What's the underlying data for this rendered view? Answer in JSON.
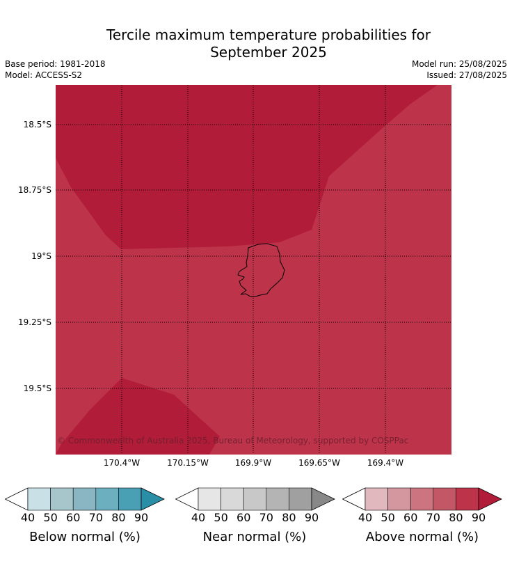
{
  "title": {
    "line1": "Tercile maximum temperature probabilities for",
    "line2": "September 2025"
  },
  "meta": {
    "base_period": "Base period: 1981-2018",
    "model": "Model: ACCESS-S2",
    "model_run": "Model run: 25/08/2025",
    "issued": "Issued: 27/08/2025"
  },
  "map": {
    "lat_labels": [
      "18.5°S",
      "18.75°S",
      "19°S",
      "19.25°S",
      "19.5°S"
    ],
    "lon_labels": [
      "170.4°W",
      "170.15°W",
      "169.9°W",
      "169.65°W",
      "169.4°W"
    ],
    "copyright": "© Commonwealth of Australia 2025, Bureau of Meteorology, supported by COSPPac",
    "colors": {
      "above_80_90": "#bd3349",
      "above_90_plus": "#b11c38",
      "coastline": "#000000",
      "gridline": "#000000"
    },
    "regions": [
      {
        "category": "Above normal",
        "probability_range": "90+",
        "color": "#b11c38"
      },
      {
        "category": "Above normal",
        "probability_range": "80-90",
        "color": "#bd3349"
      }
    ]
  },
  "legends": [
    {
      "title": "Below normal (%)",
      "ticks": [
        "40",
        "50",
        "60",
        "70",
        "80",
        "90"
      ],
      "colors": [
        "#ffffff",
        "#c8e0e6",
        "#a7c6cc",
        "#89b6c2",
        "#6cafbf",
        "#49a0b5",
        "#2a8ea6"
      ]
    },
    {
      "title": "Near normal (%)",
      "ticks": [
        "40",
        "50",
        "60",
        "70",
        "80",
        "90"
      ],
      "colors": [
        "#ffffff",
        "#e6e6e6",
        "#d9d9d9",
        "#c8c8c8",
        "#b4b4b4",
        "#a0a0a0",
        "#888888"
      ]
    },
    {
      "title": "Above normal (%)",
      "ticks": [
        "40",
        "50",
        "60",
        "70",
        "80",
        "90"
      ],
      "colors": [
        "#ffffff",
        "#e0b8be",
        "#d4969f",
        "#cc7580",
        "#c45766",
        "#bd3349",
        "#b11c38"
      ]
    }
  ]
}
